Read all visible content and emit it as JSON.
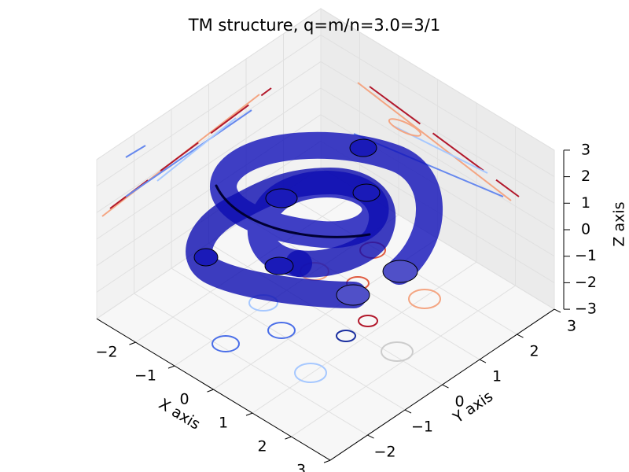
{
  "chart_data": {
    "type": "3d",
    "title": "TM structure, q=m/n=3.0=3/1",
    "xlabel": "X axis",
    "ylabel": "Y axis",
    "zlabel": "Z axis",
    "xlim": [
      -3,
      3
    ],
    "ylim": [
      -3,
      3
    ],
    "zlim": [
      -3,
      3
    ],
    "xticks": [
      {
        "value": -2,
        "label": "−2"
      },
      {
        "value": -1,
        "label": "−1"
      },
      0,
      1,
      2,
      3
    ],
    "yticks": [
      {
        "value": -2,
        "label": "−2"
      },
      {
        "value": -1,
        "label": "−1"
      },
      0,
      1,
      2,
      3
    ],
    "zticks": [
      {
        "value": -3,
        "label": "−3"
      },
      {
        "value": -2,
        "label": "−2"
      },
      {
        "value": -1,
        "label": "−1"
      },
      0,
      1,
      2,
      3
    ],
    "grid": true
  }
}
